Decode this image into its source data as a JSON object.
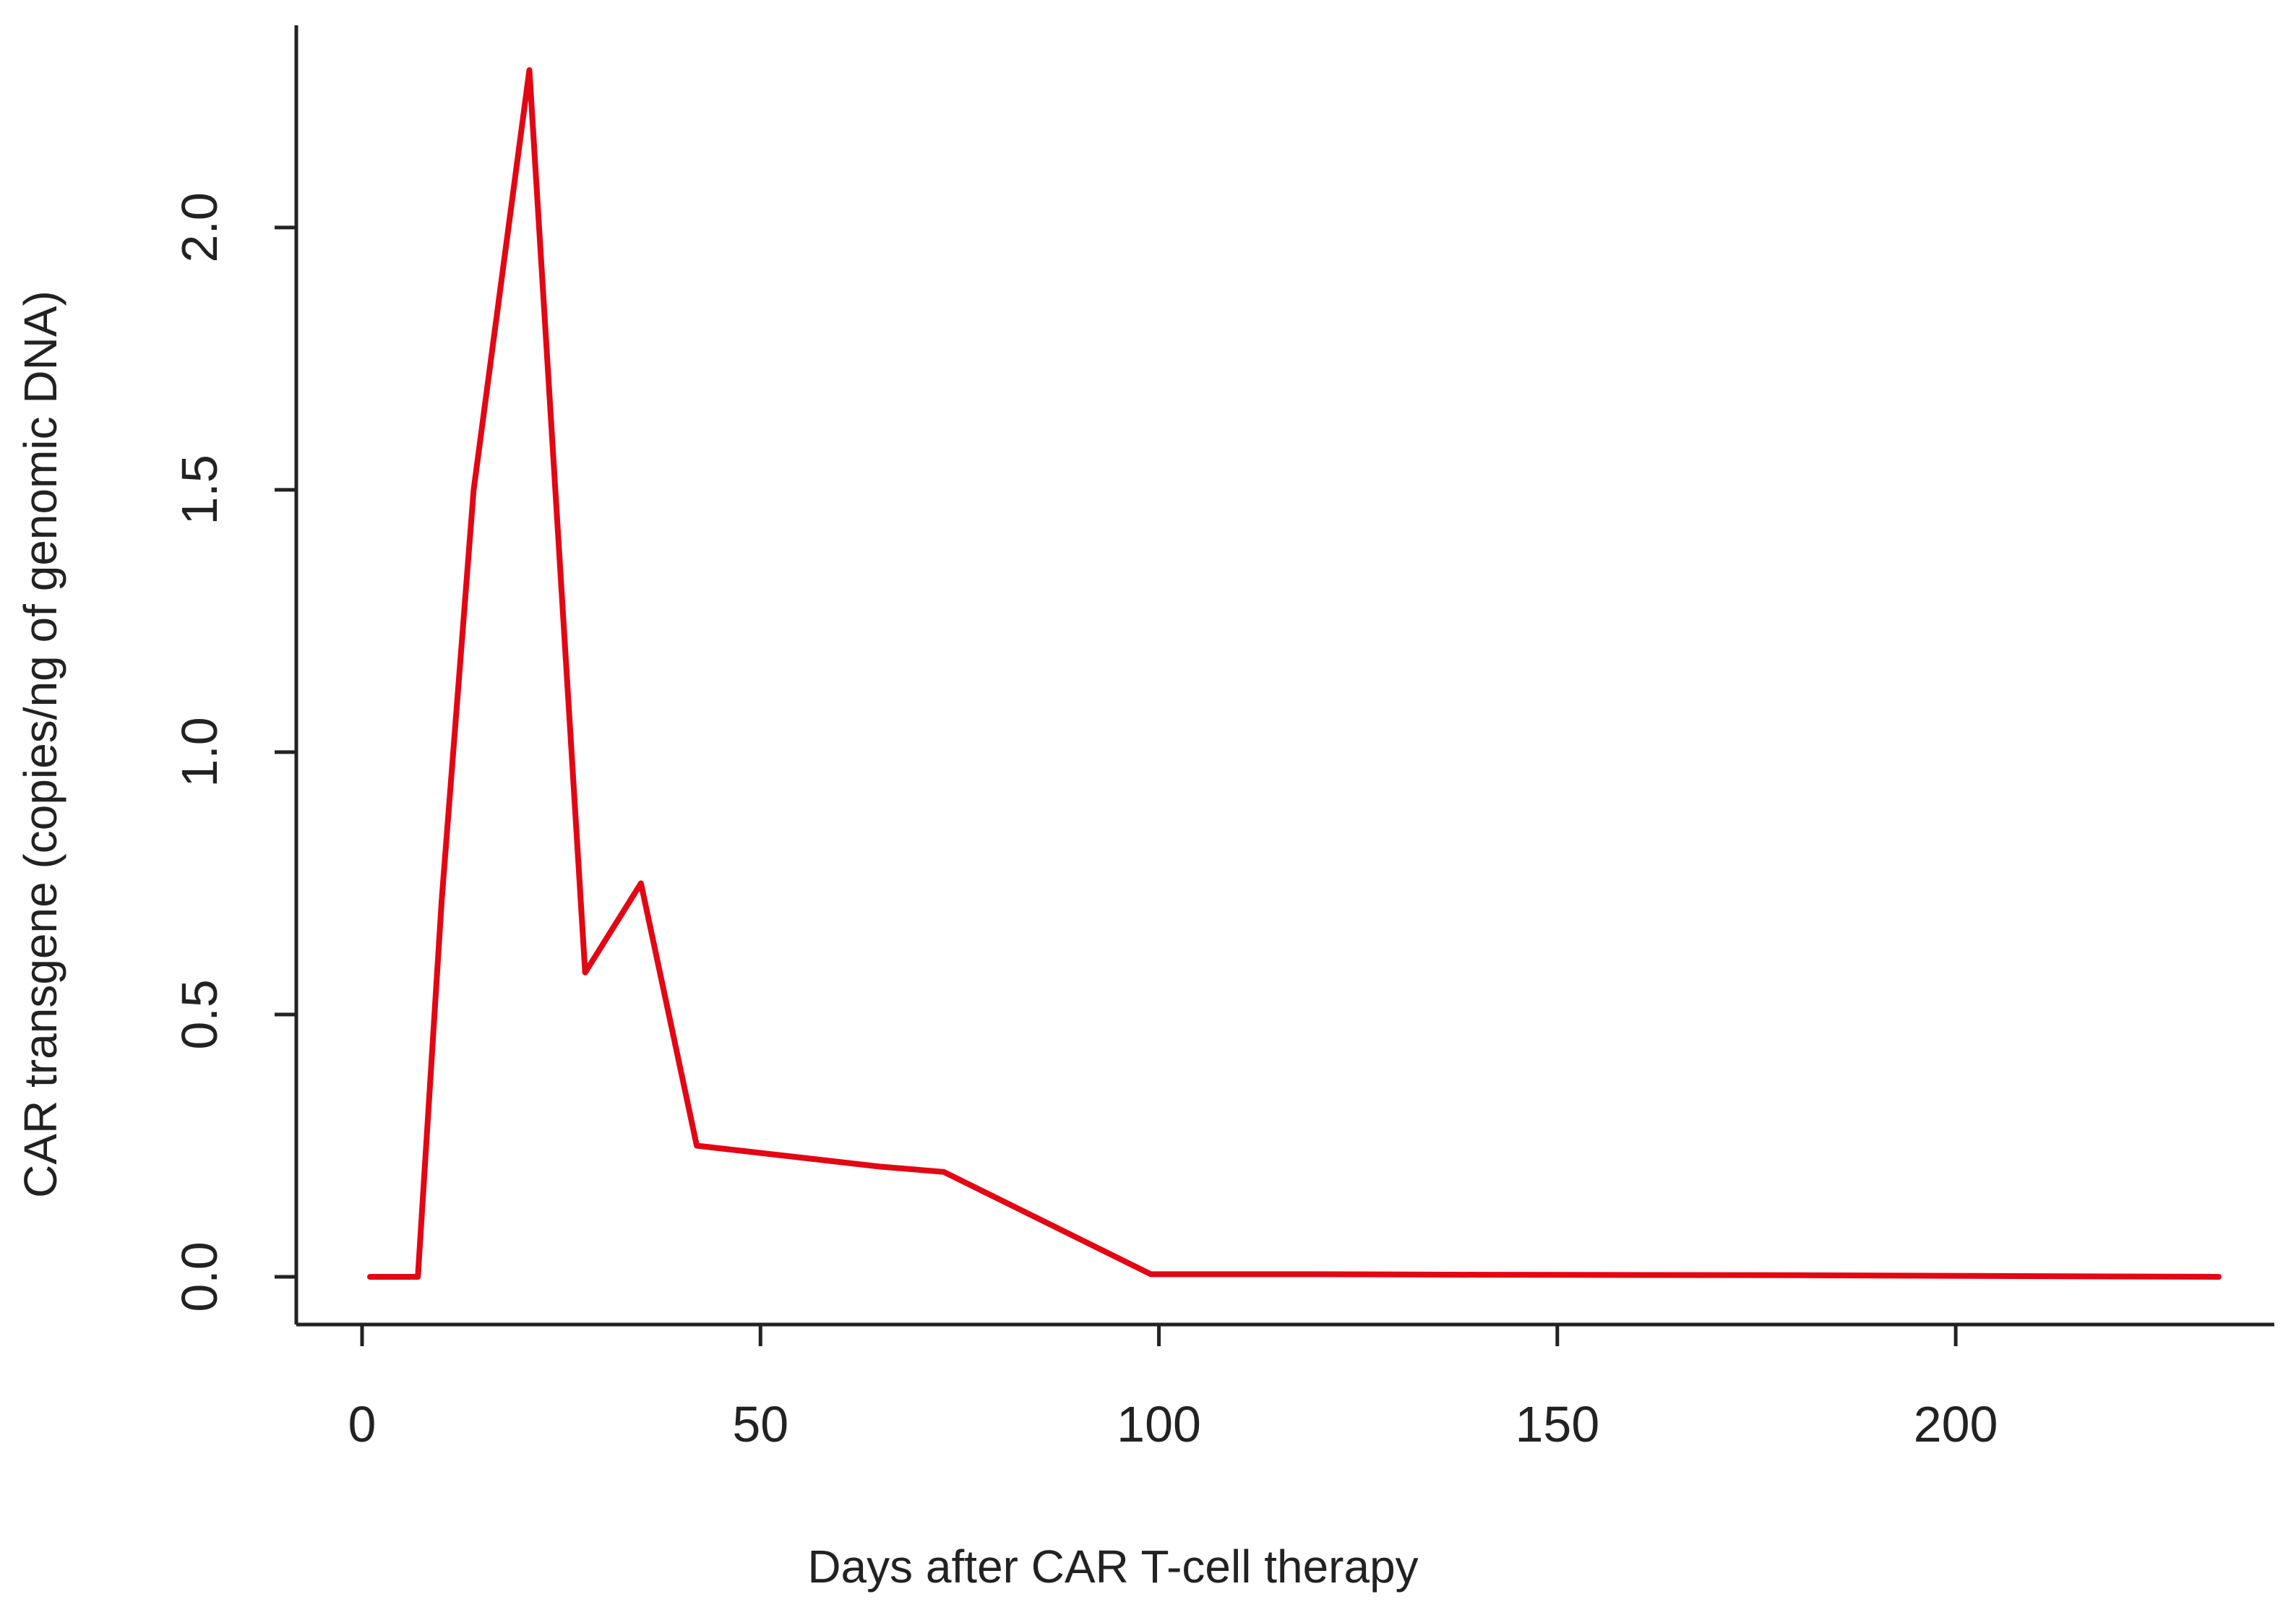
{
  "chart_data": {
    "type": "line",
    "title": "",
    "xlabel": "Days after CAR T-cell therapy",
    "ylabel": "CAR transgene (copies/ng of genomic DNA)",
    "xlim": [
      0,
      233
    ],
    "ylim": [
      0,
      2.3
    ],
    "x_ticks": [
      0,
      50,
      100,
      150,
      200
    ],
    "x_tick_labels": [
      "0",
      "50",
      "100",
      "150",
      "200"
    ],
    "y_ticks": [
      0.0,
      0.5,
      1.0,
      1.5,
      2.0
    ],
    "y_tick_labels": [
      "0.0",
      "0.5",
      "1.0",
      "1.5",
      "2.0"
    ],
    "grid": false,
    "legend": "none",
    "series": [
      {
        "color": "#e30613",
        "x": [
          1,
          7,
          10,
          14,
          21,
          28,
          35,
          42,
          65,
          73,
          99,
          120,
          140,
          180,
          233
        ],
        "y": [
          0.0,
          0.0,
          0.72,
          1.5,
          2.3,
          0.58,
          0.75,
          0.25,
          0.21,
          0.2,
          0.005,
          0.005,
          0.004,
          0.003,
          0.0
        ]
      }
    ]
  }
}
